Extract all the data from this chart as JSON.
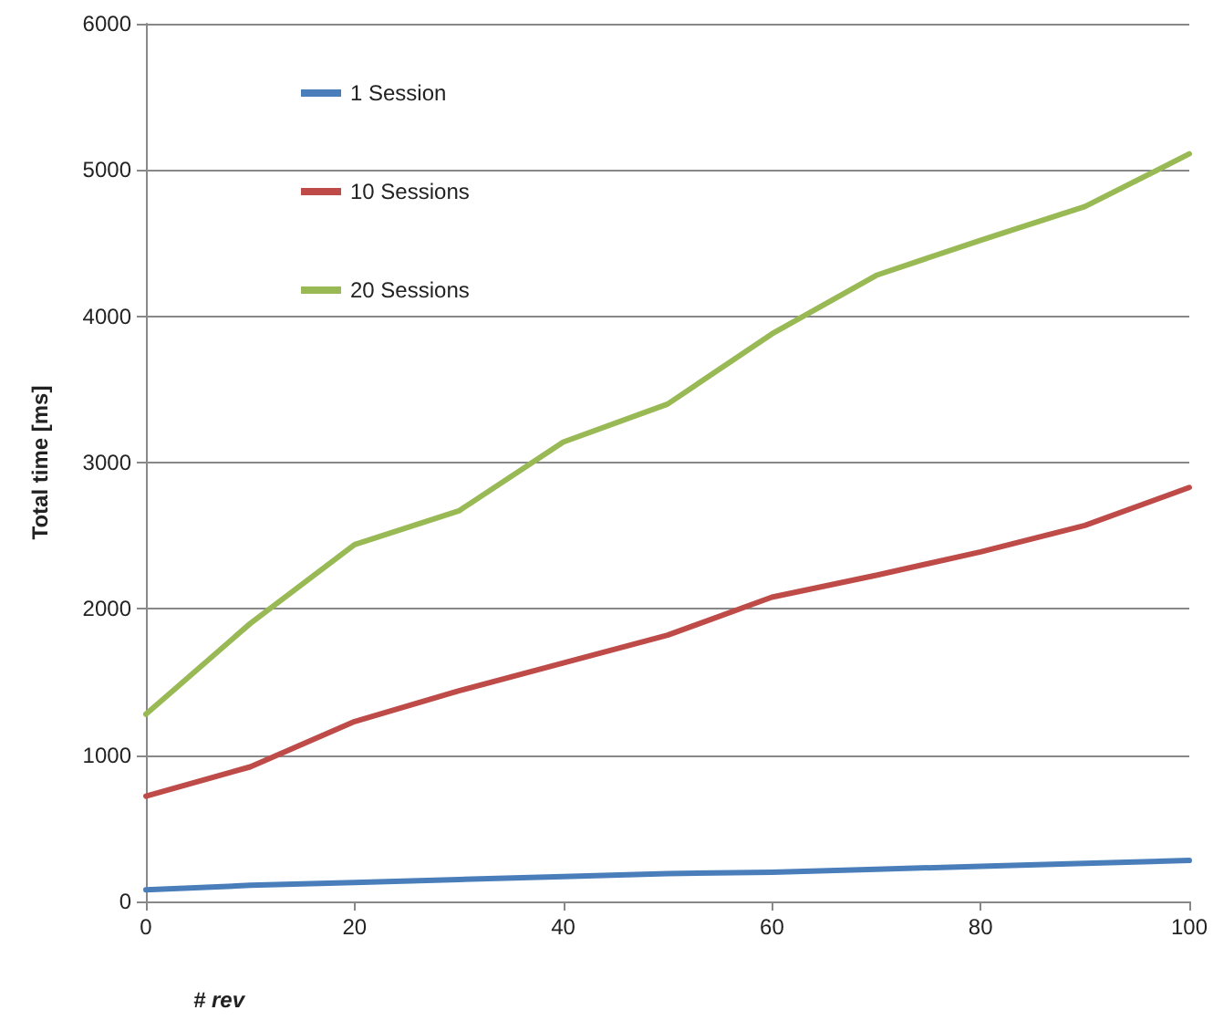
{
  "chart_data": {
    "type": "line",
    "xlabel": "# rev",
    "ylabel": "Total time [ms]",
    "x": [
      0,
      10,
      20,
      30,
      40,
      50,
      60,
      70,
      80,
      90,
      100
    ],
    "series": [
      {
        "name": "1 Session",
        "color": "#4a7ebb",
        "values": [
          80,
          110,
          130,
          150,
          170,
          190,
          200,
          220,
          240,
          260,
          280
        ]
      },
      {
        "name": "10 Sessions",
        "color": "#be4b48",
        "values": [
          720,
          920,
          1230,
          1440,
          1630,
          1820,
          2080,
          2230,
          2390,
          2570,
          2830
        ]
      },
      {
        "name": "20 Sessions",
        "color": "#98b954",
        "values": [
          1280,
          1900,
          2440,
          2670,
          3140,
          3400,
          3880,
          4280,
          4520,
          4750,
          5110
        ]
      }
    ],
    "xlim": [
      0,
      100
    ],
    "xticks": [
      0,
      20,
      40,
      60,
      80,
      100
    ],
    "ylim": [
      0,
      6000
    ],
    "yticks": [
      0,
      1000,
      2000,
      3000,
      4000,
      5000,
      6000
    ],
    "grid": "y",
    "legend": "top left",
    "marker": "none",
    "line_style": "solid"
  }
}
